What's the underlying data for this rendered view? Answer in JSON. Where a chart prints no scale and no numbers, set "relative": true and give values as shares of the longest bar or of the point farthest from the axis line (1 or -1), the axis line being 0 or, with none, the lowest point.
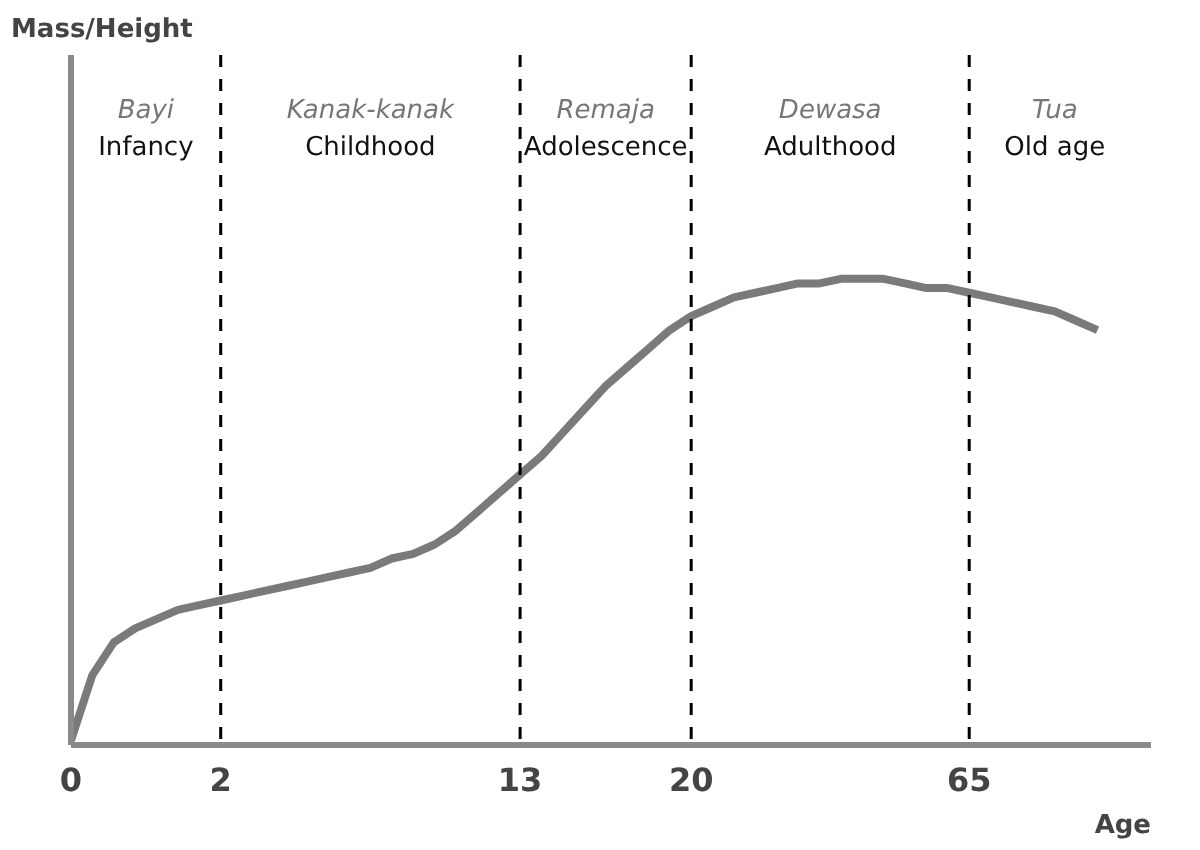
{
  "chart_data": {
    "type": "line",
    "relative": true,
    "xlabel": "Age",
    "categories": [
      "0",
      null,
      null,
      null,
      null,
      null,
      null,
      "2",
      null,
      null,
      null,
      null,
      null,
      null,
      null,
      null,
      null,
      null,
      null,
      null,
      null,
      "13",
      null,
      null,
      null,
      null,
      null,
      null,
      null,
      "20",
      null,
      null,
      null,
      null,
      null,
      null,
      null,
      null,
      null,
      null,
      null,
      null,
      "65",
      null,
      null,
      null,
      null,
      null,
      null
    ],
    "series": [
      {
        "color": "#7a7a7a",
        "values": [
          0.01,
          0.15,
          0.22,
          0.25,
          0.27,
          0.29,
          0.3,
          0.31,
          0.32,
          0.33,
          0.34,
          0.35,
          0.36,
          0.37,
          0.38,
          0.4,
          0.41,
          0.43,
          0.46,
          0.5,
          0.54,
          0.58,
          0.62,
          0.67,
          0.72,
          0.77,
          0.81,
          0.85,
          0.89,
          0.92,
          0.94,
          0.96,
          0.97,
          0.98,
          0.99,
          0.99,
          1.0,
          1.0,
          1.0,
          0.99,
          0.98,
          0.98,
          0.97,
          0.96,
          0.95,
          0.94,
          0.93,
          0.91,
          0.89
        ]
      }
    ],
    "ref_lines": [
      {
        "axis": "x",
        "value": "2",
        "line_style": "dashed",
        "color": "#000000"
      },
      {
        "axis": "x",
        "value": "13",
        "line_style": "dashed",
        "color": "#000000"
      },
      {
        "axis": "x",
        "value": "20",
        "line_style": "dashed",
        "color": "#000000"
      },
      {
        "axis": "x",
        "value": "65",
        "line_style": "dashed",
        "color": "#000000"
      }
    ],
    "annotations": [
      "Mass/Height",
      "Bayi\nInfancy",
      "Kanak-kanak\nChildhood",
      "Remaja\nAdolescence",
      "Dewasa\nAdulthood",
      "Tua\nOld age"
    ],
    "grid": false,
    "marker": "none",
    "line_style": "solid"
  }
}
